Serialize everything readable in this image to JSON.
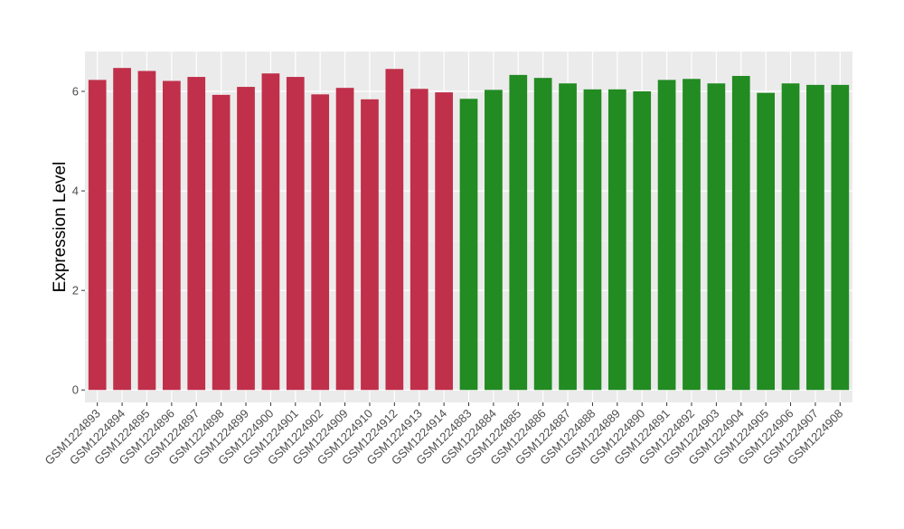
{
  "chart_data": {
    "type": "bar",
    "title": "",
    "xlabel": "",
    "ylabel": "Expression Level",
    "ylim": [
      -0.25,
      6.8
    ],
    "yticks": [
      0,
      2,
      4,
      6
    ],
    "grid": true,
    "legend": "none",
    "panel_color": "#ebebeb",
    "categories": [
      "GSM1224893",
      "GSM1224894",
      "GSM1224895",
      "GSM1224896",
      "GSM1224897",
      "GSM1224898",
      "GSM1224899",
      "GSM1224900",
      "GSM1224901",
      "GSM1224902",
      "GSM1224909",
      "GSM1224910",
      "GSM1224912",
      "GSM1224913",
      "GSM1224914",
      "GSM1224883",
      "GSM1224884",
      "GSM1224885",
      "GSM1224886",
      "GSM1224887",
      "GSM1224888",
      "GSM1224889",
      "GSM1224890",
      "GSM1224891",
      "GSM1224892",
      "GSM1224903",
      "GSM1224904",
      "GSM1224905",
      "GSM1224906",
      "GSM1224907",
      "GSM1224908"
    ],
    "values": [
      6.23,
      6.47,
      6.41,
      6.21,
      6.29,
      5.93,
      6.09,
      6.36,
      6.29,
      5.94,
      6.07,
      5.84,
      6.45,
      6.05,
      5.98,
      5.85,
      6.03,
      6.33,
      6.27,
      6.16,
      6.04,
      6.04,
      6.0,
      6.23,
      6.25,
      6.16,
      6.31,
      5.97,
      6.16,
      6.13,
      6.13
    ],
    "group_sizes": [
      15,
      16
    ],
    "colors": [
      "#c0304a",
      "#228b22"
    ]
  }
}
